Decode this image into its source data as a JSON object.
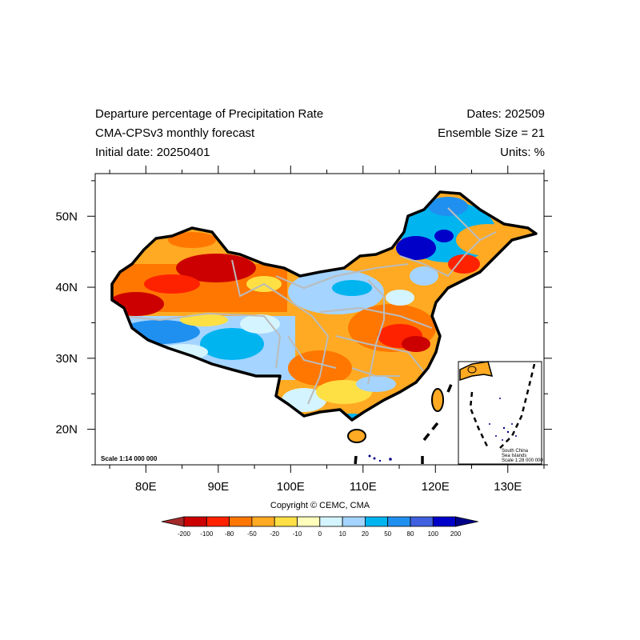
{
  "header": {
    "title": "Departure percentage of Precipitation Rate",
    "subtitle": "CMA-CPSv3 monthly forecast",
    "initial_date": "Initial date: 20250401",
    "dates": "Dates: 202509",
    "ensemble": "Ensemble Size = 21",
    "units": "Units: %"
  },
  "map": {
    "lon_range": [
      73,
      135
    ],
    "lat_range": [
      15,
      56
    ],
    "lon_ticks": [
      {
        "value": 80,
        "label": "80E"
      },
      {
        "value": 90,
        "label": "90E"
      },
      {
        "value": 100,
        "label": "100E"
      },
      {
        "value": 110,
        "label": "110E"
      },
      {
        "value": 120,
        "label": "120E"
      },
      {
        "value": 130,
        "label": "130E"
      }
    ],
    "lat_ticks": [
      {
        "value": 20,
        "label": "20N"
      },
      {
        "value": 30,
        "label": "30N"
      },
      {
        "value": 40,
        "label": "40N"
      },
      {
        "value": 50,
        "label": "50N"
      }
    ],
    "scale_label": "Scale 1:14 000 000",
    "inset_label_1": "South China",
    "inset_label_2": "Sea Islands",
    "inset_scale_label": "Scale 1:28 000 000"
  },
  "colorbar": {
    "labels": [
      "-200",
      "-100",
      "-80",
      "-50",
      "-20",
      "-10",
      "0",
      "10",
      "20",
      "50",
      "80",
      "100",
      "200"
    ],
    "colors": [
      "#a52a2a",
      "#cc0000",
      "#ff2200",
      "#ff7700",
      "#ffaa22",
      "#ffe044",
      "#ffffbb",
      "#d4f4ff",
      "#a4d4ff",
      "#00b4f0",
      "#2090f0",
      "#4060e0",
      "#0000c8",
      "#000088"
    ]
  },
  "copyright": "Copyright © CEMC, CMA"
}
